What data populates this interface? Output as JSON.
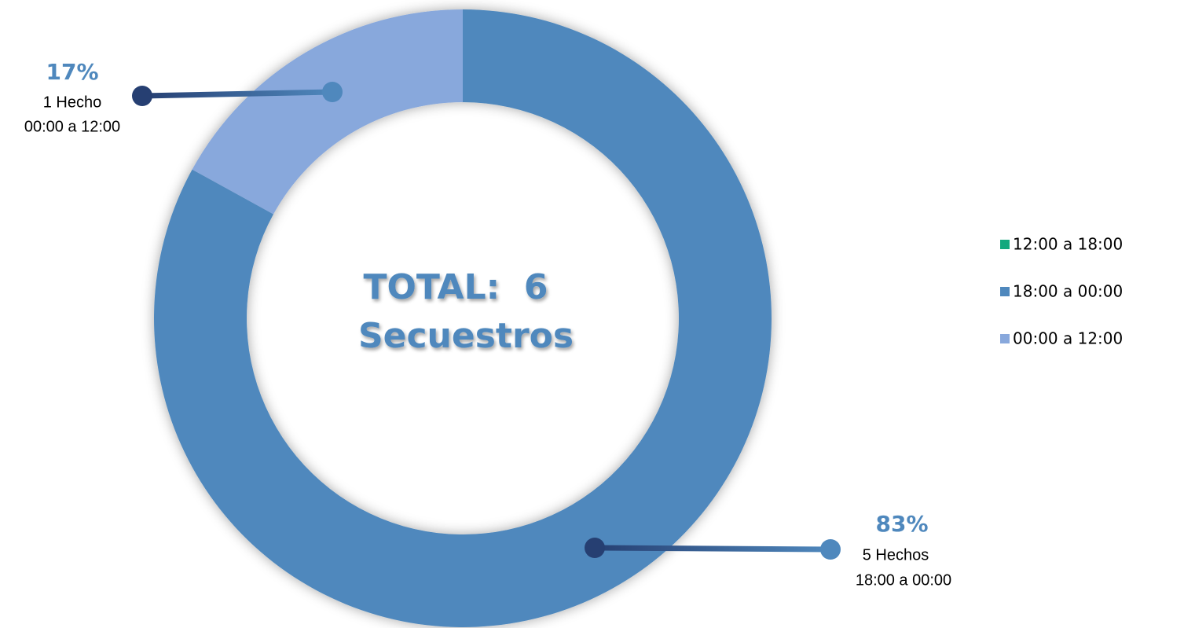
{
  "chart_data": {
    "type": "donut",
    "categories": [
      "12:00 a 18:00",
      "18:00 a 00:00",
      "00:00 a 12:00"
    ],
    "values": [
      0,
      83,
      17
    ],
    "value_labels": [
      null,
      "83%",
      "17%"
    ],
    "count_labels": [
      null,
      "5 Hechos",
      "1 Hecho"
    ],
    "colors": [
      "#13a87d",
      "#4f88bd",
      "#88a8dc"
    ],
    "center_text": [
      "TOTAL:  6",
      "Secuestros"
    ],
    "legend": "right"
  }
}
